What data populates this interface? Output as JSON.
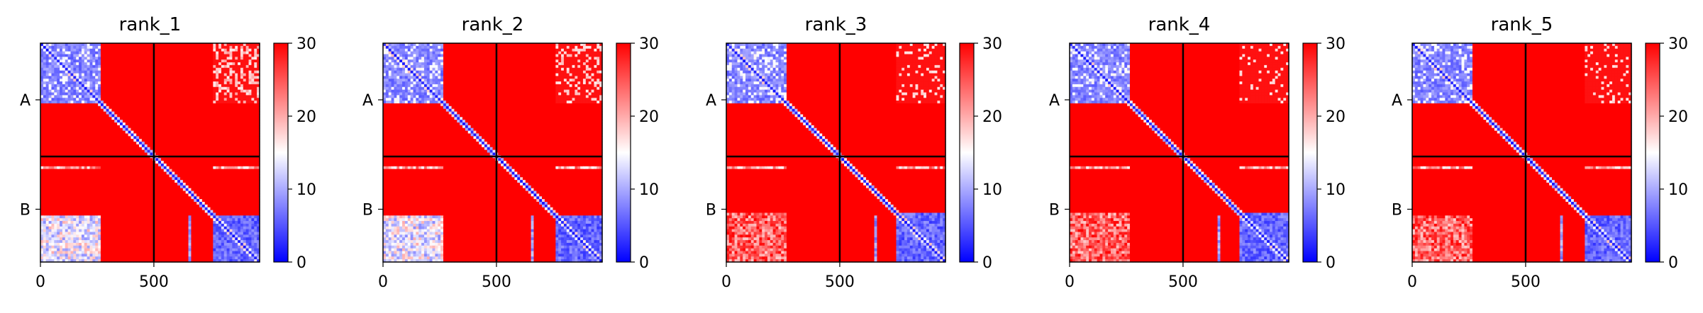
{
  "chart_data": [
    {
      "type": "heatmap",
      "title": "rank_1",
      "y_tick_labels": [
        "A",
        "B"
      ],
      "x_tick_labels": [
        "0",
        "500"
      ],
      "chain_boundary": 500,
      "xlim": [
        0,
        966
      ],
      "colorbar": {
        "ticks": [
          "0",
          "10",
          "20",
          "30"
        ],
        "range": [
          0,
          30
        ],
        "colormap": "bwr"
      },
      "colors": {
        "low": "#0000ff",
        "mid": "#ffffff",
        "high": "#ff0000"
      },
      "pattern": {
        "domainA_end": 268,
        "chainB_domain_start": 760,
        "inter_B_to_A_low": true,
        "offdiag_strength": 1.0
      }
    },
    {
      "type": "heatmap",
      "title": "rank_2",
      "y_tick_labels": [
        "A",
        "B"
      ],
      "x_tick_labels": [
        "0",
        "500"
      ],
      "chain_boundary": 500,
      "xlim": [
        0,
        966
      ],
      "colorbar": {
        "ticks": [
          "0",
          "10",
          "20",
          "30"
        ],
        "range": [
          0,
          30
        ],
        "colormap": "bwr"
      },
      "colors": {
        "low": "#0000ff",
        "mid": "#ffffff",
        "high": "#ff0000"
      },
      "pattern": {
        "domainA_end": 268,
        "chainB_domain_start": 760,
        "inter_B_to_A_low": true,
        "offdiag_strength": 0.7
      }
    },
    {
      "type": "heatmap",
      "title": "rank_3",
      "y_tick_labels": [
        "A",
        "B"
      ],
      "x_tick_labels": [
        "0",
        "500"
      ],
      "chain_boundary": 500,
      "xlim": [
        0,
        966
      ],
      "colorbar": {
        "ticks": [
          "0",
          "10",
          "20",
          "30"
        ],
        "range": [
          0,
          30
        ],
        "colormap": "bwr"
      },
      "colors": {
        "low": "#0000ff",
        "mid": "#ffffff",
        "high": "#ff0000"
      },
      "pattern": {
        "domainA_end": 268,
        "chainB_domain_start": 745,
        "inter_B_to_A_low": false,
        "offdiag_strength": 0.4
      }
    },
    {
      "type": "heatmap",
      "title": "rank_4",
      "y_tick_labels": [
        "A",
        "B"
      ],
      "x_tick_labels": [
        "0",
        "500"
      ],
      "chain_boundary": 500,
      "xlim": [
        0,
        966
      ],
      "colorbar": {
        "ticks": [
          "0",
          "10",
          "20",
          "30"
        ],
        "range": [
          0,
          30
        ],
        "colormap": "bwr"
      },
      "colors": {
        "low": "#0000ff",
        "mid": "#ffffff",
        "high": "#ff0000"
      },
      "pattern": {
        "domainA_end": 268,
        "chainB_domain_start": 745,
        "inter_B_to_A_low": false,
        "offdiag_strength": 0.3
      }
    },
    {
      "type": "heatmap",
      "title": "rank_5",
      "y_tick_labels": [
        "A",
        "B"
      ],
      "x_tick_labels": [
        "0",
        "500"
      ],
      "chain_boundary": 500,
      "xlim": [
        0,
        966
      ],
      "colorbar": {
        "ticks": [
          "0",
          "10",
          "20",
          "30"
        ],
        "range": [
          0,
          30
        ],
        "colormap": "bwr"
      },
      "colors": {
        "low": "#0000ff",
        "mid": "#ffffff",
        "high": "#ff0000"
      },
      "pattern": {
        "domainA_end": 268,
        "chainB_domain_start": 760,
        "inter_B_to_A_low": false,
        "offdiag_strength": 0.4
      }
    }
  ]
}
